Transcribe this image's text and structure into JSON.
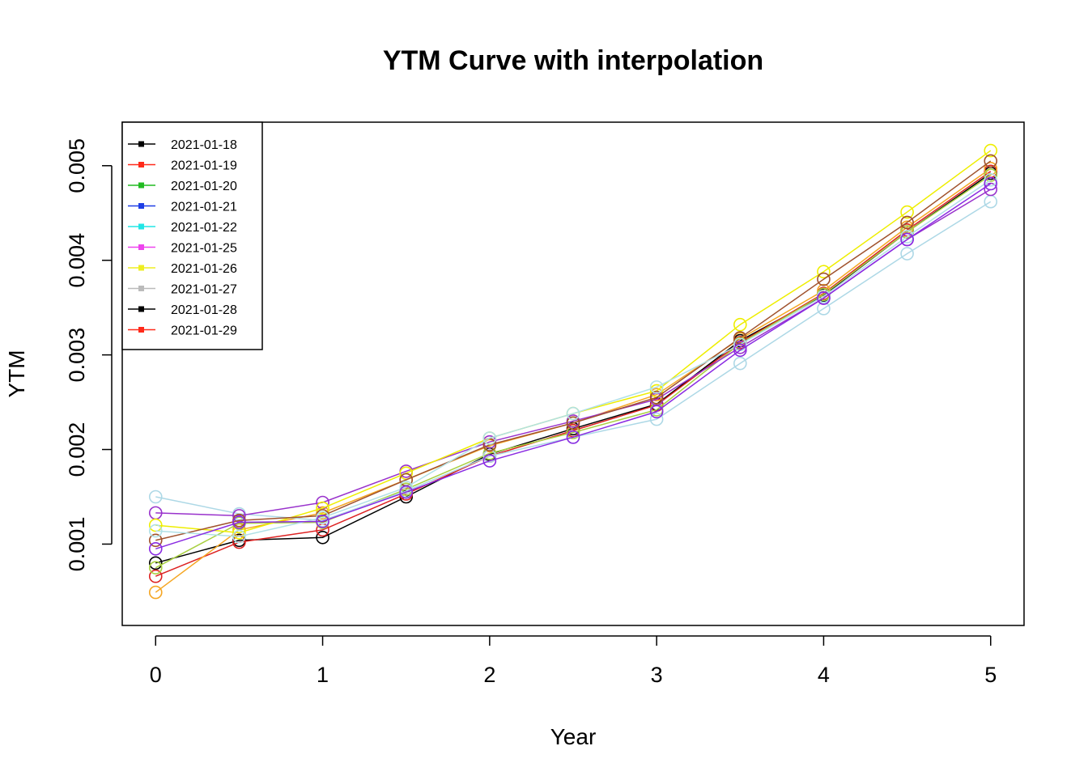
{
  "chart_data": {
    "type": "line",
    "title": "YTM Curve with interpolation",
    "xlabel": "Year",
    "ylabel": "YTM",
    "xlim": [
      -0.2,
      5.2
    ],
    "ylim": [
      0.00014,
      0.00546
    ],
    "x_ticks": [
      0,
      1,
      2,
      3,
      4,
      5
    ],
    "x_tick_labels": [
      "0",
      "1",
      "2",
      "3",
      "4",
      "5"
    ],
    "y_ticks": [
      0.001,
      0.002,
      0.003,
      0.004,
      0.005
    ],
    "y_tick_labels": [
      "0.001",
      "0.002",
      "0.003",
      "0.004",
      "0.005"
    ],
    "legend_position": "top-left",
    "legend": [
      {
        "label": "2021-01-18",
        "color": "#000000"
      },
      {
        "label": "2021-01-19",
        "color": "#ff2a1a"
      },
      {
        "label": "2021-01-20",
        "color": "#22bb22"
      },
      {
        "label": "2021-01-21",
        "color": "#1f3fe6"
      },
      {
        "label": "2021-01-22",
        "color": "#22e6e6"
      },
      {
        "label": "2021-01-25",
        "color": "#ee44ee"
      },
      {
        "label": "2021-01-26",
        "color": "#eeee22"
      },
      {
        "label": "2021-01-27",
        "color": "#bbbbbb"
      },
      {
        "label": "2021-01-28",
        "color": "#000000"
      },
      {
        "label": "2021-01-29",
        "color": "#ff2a1a"
      }
    ],
    "x": [
      0,
      0.5,
      1,
      1.5,
      2,
      2.5,
      3,
      3.5,
      4,
      4.5,
      5
    ],
    "series": [
      {
        "color": "#000000",
        "values": [
          0.0008,
          0.00104,
          0.00107,
          0.0015,
          0.00195,
          0.00222,
          0.00248,
          0.00315,
          0.00363,
          0.0043,
          0.00492
        ]
      },
      {
        "color": "#dd2222",
        "values": [
          0.00066,
          0.00102,
          0.00115,
          0.00153,
          0.00193,
          0.0022,
          0.00247,
          0.00313,
          0.00365,
          0.00432,
          0.00494
        ]
      },
      {
        "color": "#f5a623",
        "values": [
          0.00049,
          0.00115,
          0.00133,
          0.00168,
          0.00204,
          0.00228,
          0.00258,
          0.00317,
          0.00368,
          0.00435,
          0.00497
        ]
      },
      {
        "color": "#a8d040",
        "values": [
          0.00075,
          0.00122,
          0.00123,
          0.00158,
          0.00196,
          0.00218,
          0.00242,
          0.00312,
          0.00364,
          0.0043,
          0.0049
        ]
      },
      {
        "color": "#add8e6",
        "values": [
          0.0015,
          0.00132,
          0.00125,
          0.00156,
          0.00193,
          0.00213,
          0.00232,
          0.00291,
          0.00349,
          0.00407,
          0.00462
        ]
      },
      {
        "color": "#9932cc",
        "values": [
          0.00133,
          0.0013,
          0.00144,
          0.00177,
          0.00208,
          0.0023,
          0.00253,
          0.00308,
          0.0036,
          0.00422,
          0.00475
        ]
      },
      {
        "color": "#eeee00",
        "values": [
          0.0012,
          0.00112,
          0.00138,
          0.00175,
          0.00212,
          0.00238,
          0.00262,
          0.00332,
          0.00388,
          0.00451,
          0.00516
        ]
      },
      {
        "color": "#a0522d",
        "values": [
          0.00104,
          0.00125,
          0.0013,
          0.00168,
          0.00205,
          0.00228,
          0.00255,
          0.00318,
          0.0038,
          0.0044,
          0.00505
        ]
      },
      {
        "color": "#b0e0e6",
        "values": [
          0.00114,
          0.00108,
          0.00128,
          0.0016,
          0.00212,
          0.00238,
          0.00266,
          0.00311,
          0.00362,
          0.00425,
          0.00485
        ]
      },
      {
        "color": "#8a2be2",
        "values": [
          0.00095,
          0.00123,
          0.00124,
          0.00155,
          0.00188,
          0.00213,
          0.0024,
          0.00305,
          0.0036,
          0.00422,
          0.00481
        ]
      }
    ]
  }
}
